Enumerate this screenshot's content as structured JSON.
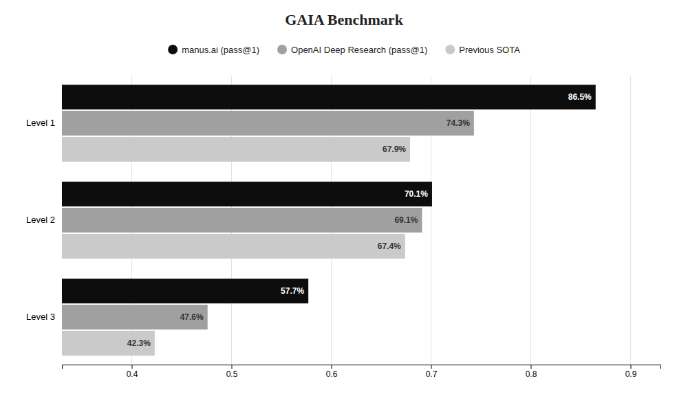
{
  "chart_data": {
    "type": "bar",
    "orientation": "horizontal",
    "title": "GAIA Benchmark",
    "categories": [
      "Level 1",
      "Level 2",
      "Level 3"
    ],
    "series": [
      {
        "name": "manus.ai (pass@1)",
        "color": "#0d0d0d",
        "values": [
          0.865,
          0.701,
          0.577
        ],
        "value_labels": [
          "86.5%",
          "70.1%",
          "57.7%"
        ]
      },
      {
        "name": "OpenAI Deep Research (pass@1)",
        "color": "#a0a0a0",
        "values": [
          0.743,
          0.691,
          0.476
        ],
        "value_labels": [
          "74.3%",
          "69.1%",
          "47.6%"
        ]
      },
      {
        "name": "Previous SOTA",
        "color": "#cacaca",
        "values": [
          0.679,
          0.674,
          0.423
        ],
        "value_labels": [
          "67.9%",
          "67.4%",
          "42.3%"
        ]
      }
    ],
    "xlim": [
      0.33,
      0.93
    ],
    "xticks": [
      0.4,
      0.5,
      0.6,
      0.7,
      0.8,
      0.9
    ],
    "grid": true,
    "legend": "top",
    "data_labels": true
  }
}
